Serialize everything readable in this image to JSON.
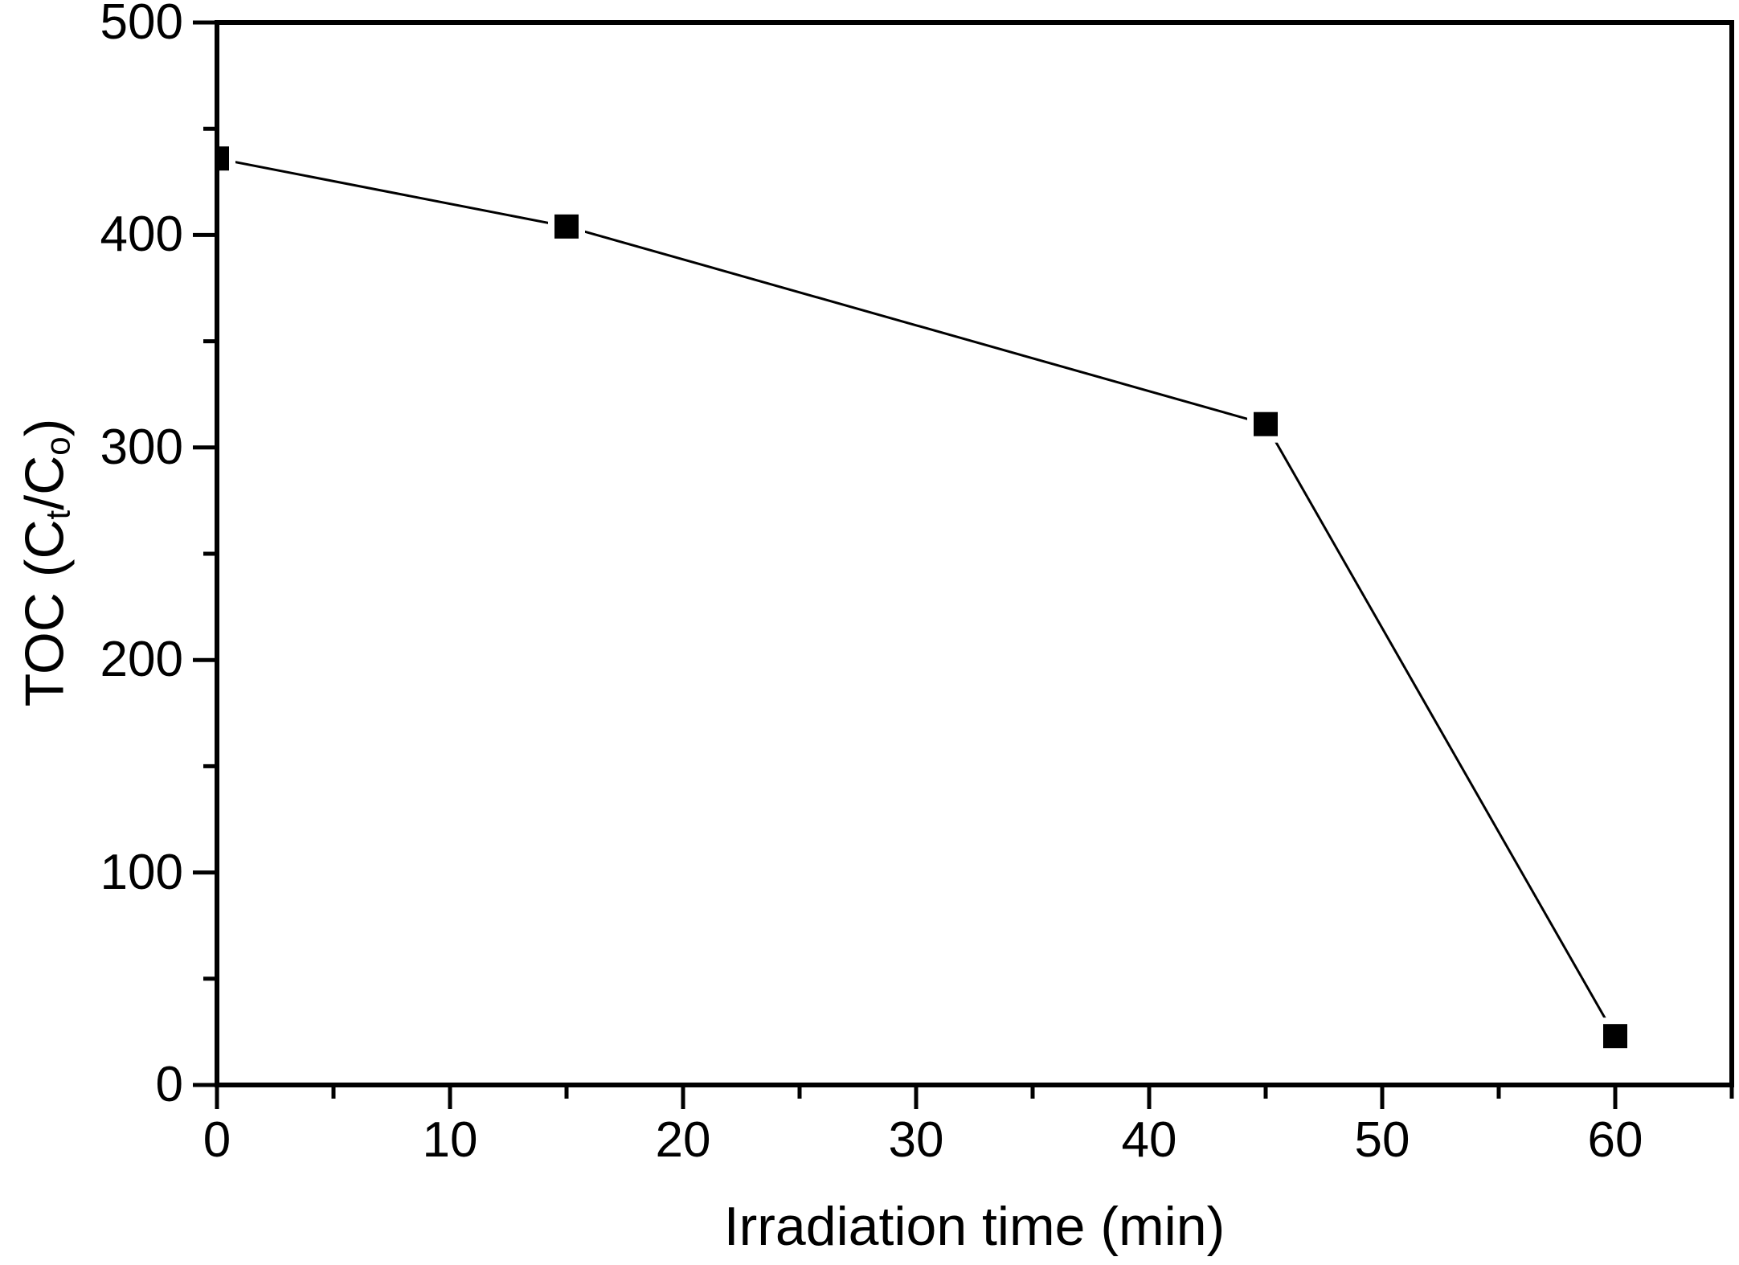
{
  "chart_data": {
    "type": "line",
    "title": "",
    "xlabel": "Irradiation time (min)",
    "ylabel": "TOC (Ct/Co)",
    "ylabel_parts": [
      {
        "text": "TOC (C",
        "sub": false
      },
      {
        "text": "t",
        "sub": true
      },
      {
        "text": "/C",
        "sub": false
      },
      {
        "text": "o",
        "sub": true
      },
      {
        "text": ")",
        "sub": false
      }
    ],
    "series": [
      {
        "x": [
          0,
          15,
          45,
          60
        ],
        "y": [
          436,
          404,
          311,
          23
        ],
        "marker": "filled-square",
        "line_style": "solid",
        "color": "#000000"
      }
    ],
    "xlim": [
      0,
      65
    ],
    "ylim": [
      0,
      500
    ],
    "x_major_ticks": [
      0,
      10,
      20,
      30,
      40,
      50,
      60
    ],
    "x_minor_ticks": [
      5,
      15,
      25,
      35,
      45,
      55,
      65
    ],
    "y_major_ticks": [
      0,
      100,
      200,
      300,
      400,
      500
    ],
    "y_minor_ticks": [
      50,
      150,
      250,
      350,
      450
    ],
    "grid": false,
    "legend": "none",
    "frame": "full-box",
    "background_color": "#ffffff",
    "axis_color": "#000000",
    "marker_color": "#000000"
  }
}
